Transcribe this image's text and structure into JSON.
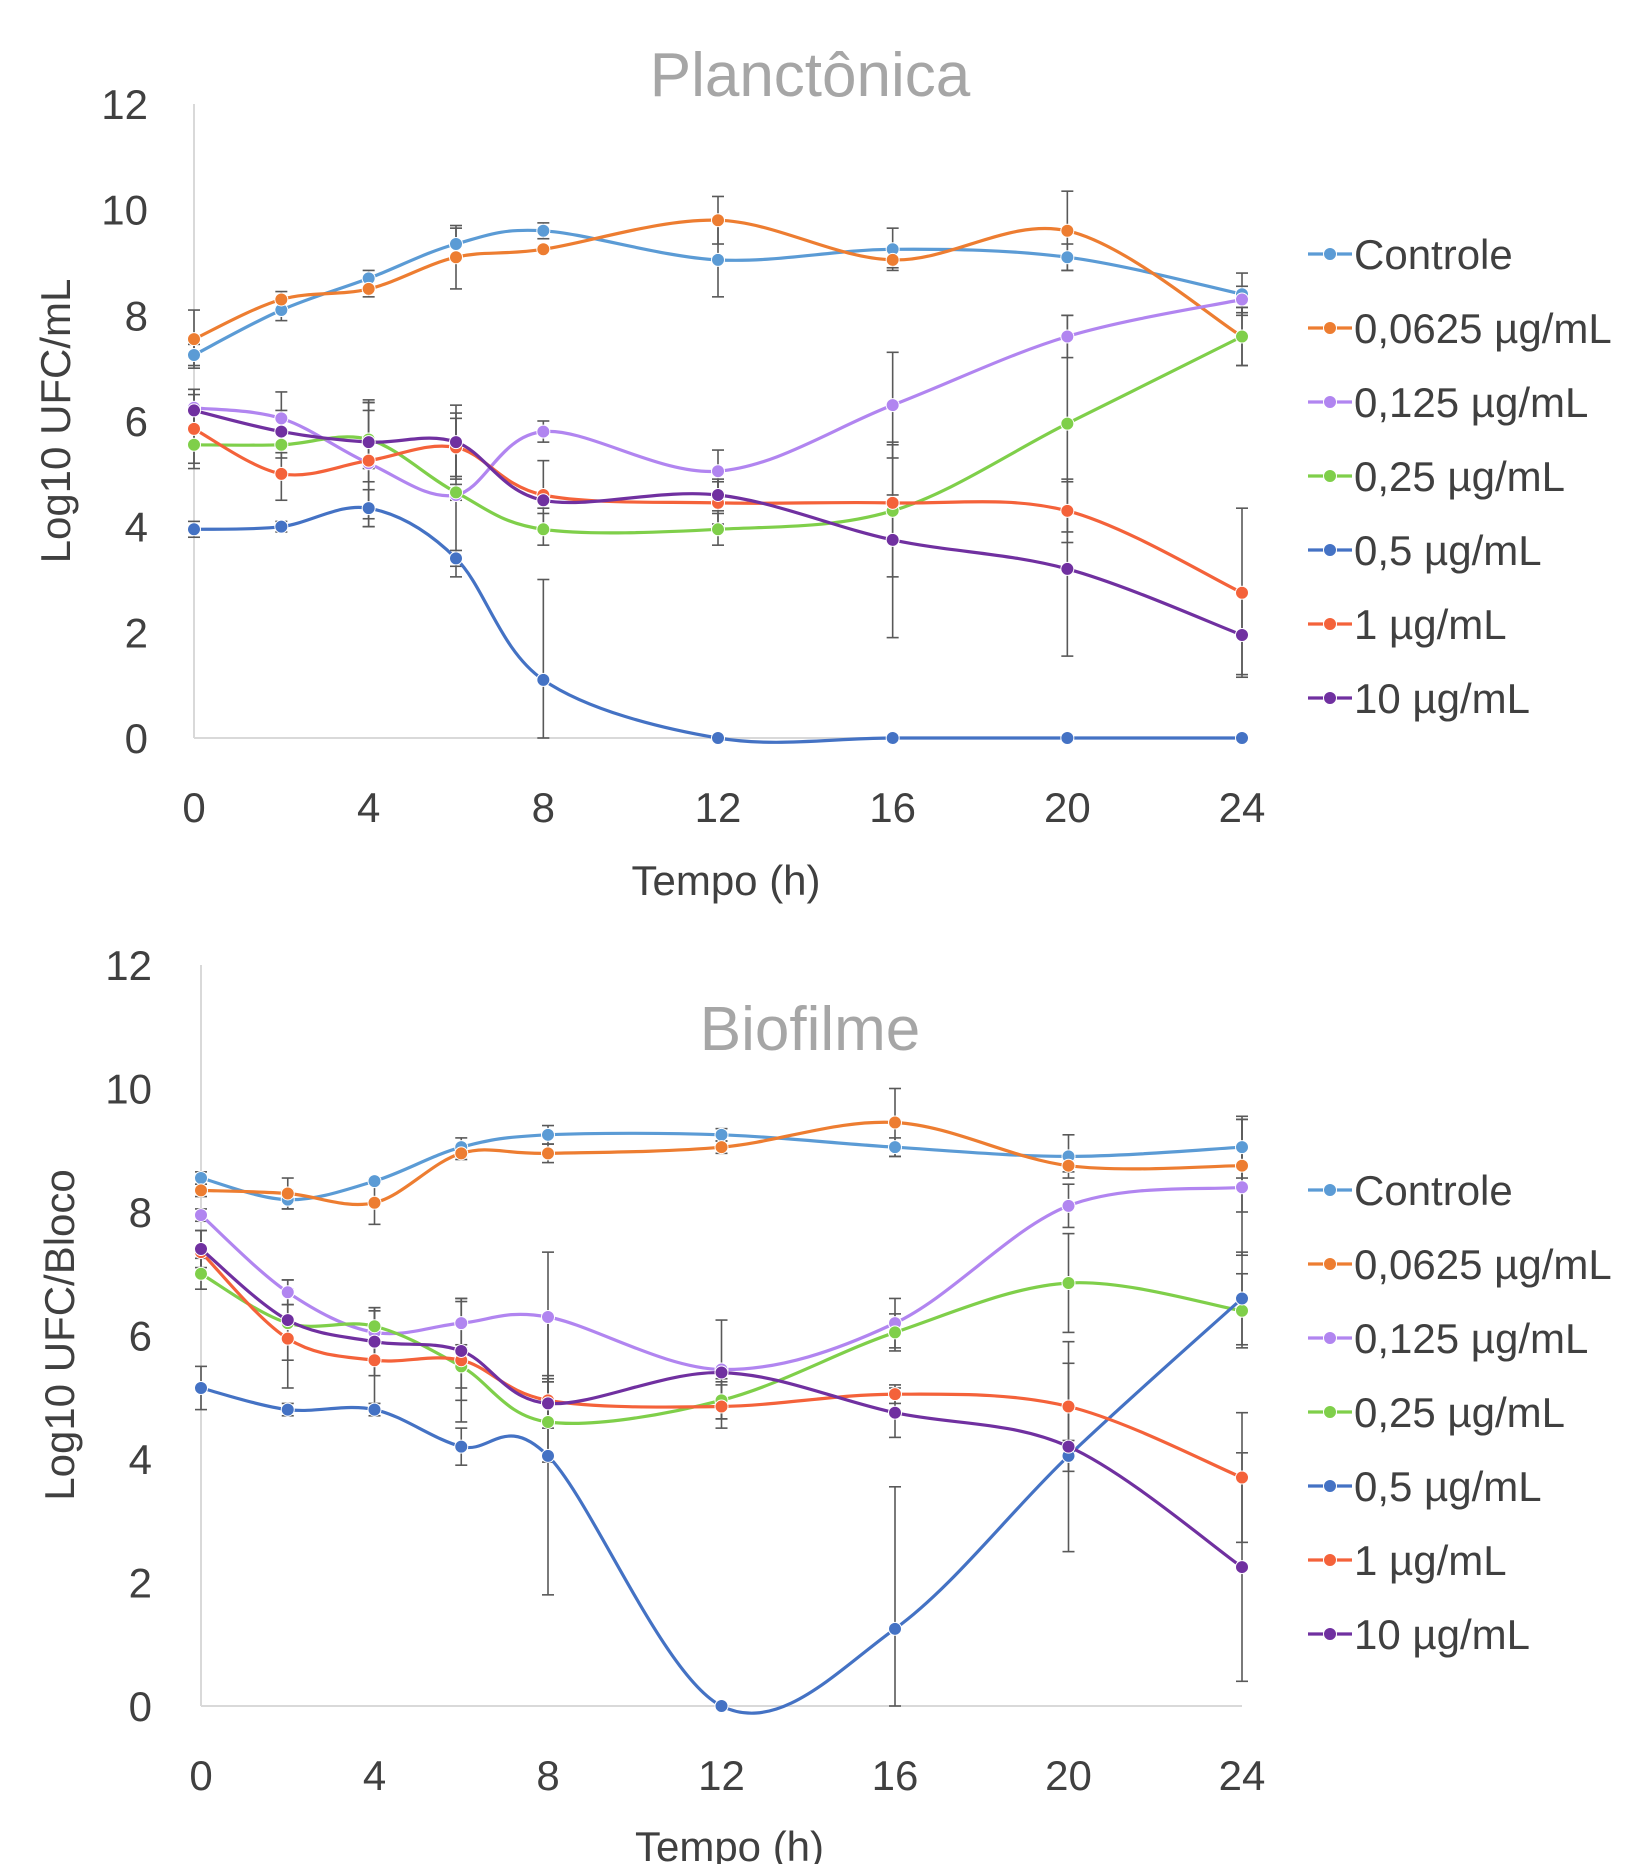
{
  "chart_data": [
    {
      "type": "line",
      "title": "Planctônica",
      "xlabel": "Tempo (h)",
      "ylabel": "Log10 UFC/mL",
      "x": [
        0,
        2,
        4,
        6,
        8,
        12,
        16,
        20,
        24
      ],
      "xticks": [
        0,
        4,
        8,
        12,
        16,
        20,
        24
      ],
      "yticks": [
        0,
        2,
        4,
        6,
        8,
        10,
        12
      ],
      "xlim": [
        0,
        24
      ],
      "ylim": [
        0,
        12
      ],
      "grid": false,
      "legend_position": "right",
      "series": [
        {
          "name": "Controle",
          "color": "#5b9bd5",
          "values": [
            7.25,
            8.1,
            8.7,
            9.35,
            9.6,
            9.05,
            9.25,
            9.1,
            8.4
          ],
          "errors": [
            0.2,
            0.2,
            0.15,
            0.3,
            0.15,
            0.7,
            0.4,
            0.25,
            0.4
          ]
        },
        {
          "name": "0,0625 µg/mL",
          "color": "#ed7d31",
          "values": [
            7.55,
            8.3,
            8.5,
            9.1,
            9.25,
            9.8,
            9.05,
            9.6,
            7.6
          ],
          "errors": [
            0.55,
            0.15,
            0.15,
            0.6,
            0.05,
            0.45,
            0.15,
            0.75,
            0.55
          ]
        },
        {
          "name": "0,125 µg/mL",
          "color": "#b185f0",
          "values": [
            6.25,
            6.05,
            5.2,
            4.6,
            5.8,
            5.05,
            6.3,
            7.6,
            8.3
          ],
          "errors": [
            0.35,
            0.5,
            1.2,
            1.55,
            0.2,
            0.4,
            1.0,
            0.4,
            0.25
          ]
        },
        {
          "name": "0,25 µg/mL",
          "color": "#7fcf4a",
          "values": [
            5.55,
            5.55,
            5.65,
            4.65,
            3.95,
            3.95,
            4.3,
            5.95,
            7.6
          ],
          "errors": [
            0.35,
            0.25,
            0.55,
            0.15,
            0.3,
            0.3,
            1.25,
            2.05,
            0.55
          ]
        },
        {
          "name": "0,5 µg/mL",
          "color": "#4472c4",
          "values": [
            3.95,
            4.0,
            4.35,
            3.4,
            1.1,
            0.0,
            0.0,
            0.0,
            0.0
          ],
          "errors": [
            0.15,
            0.1,
            0.35,
            0.15,
            1.9,
            0.0,
            0.0,
            0.0,
            0.0
          ]
        },
        {
          "name": "1 µg/mL",
          "color": "#f4623a",
          "values": [
            5.85,
            5.0,
            5.25,
            5.5,
            4.6,
            4.45,
            4.45,
            4.3,
            2.75
          ],
          "errors": [
            0.75,
            0.5,
            1.1,
            0.55,
            0.65,
            0.4,
            0.15,
            0.6,
            1.6
          ]
        },
        {
          "name": "10 µg/mL",
          "color": "#7030a0",
          "values": [
            6.2,
            5.8,
            5.6,
            5.6,
            4.5,
            4.6,
            3.75,
            3.2,
            1.95
          ],
          "errors": [
            0.3,
            0.4,
            0.75,
            0.7,
            0.15,
            0.3,
            1.85,
            1.65,
            0.75
          ]
        }
      ]
    },
    {
      "type": "line",
      "title": "Biofilme",
      "xlabel": "Tempo (h)",
      "ylabel": "Log10 UFC/Bloco",
      "x": [
        0,
        2,
        4,
        6,
        8,
        12,
        16,
        20,
        24
      ],
      "xticks": [
        0,
        4,
        8,
        12,
        16,
        20,
        24
      ],
      "yticks": [
        0,
        2,
        4,
        6,
        8,
        10,
        12
      ],
      "xlim": [
        0,
        24
      ],
      "ylim": [
        0,
        12
      ],
      "grid": false,
      "legend_position": "right",
      "series": [
        {
          "name": "Controle",
          "color": "#5b9bd5",
          "values": [
            8.55,
            8.2,
            8.5,
            9.05,
            9.25,
            9.25,
            9.05,
            8.9,
            9.05
          ],
          "errors": [
            0.1,
            0.15,
            0.05,
            0.15,
            0.15,
            0.1,
            0.15,
            0.35,
            0.5
          ]
        },
        {
          "name": "0,0625 µg/mL",
          "color": "#ed7d31",
          "values": [
            8.35,
            8.3,
            8.15,
            8.95,
            8.95,
            9.05,
            9.45,
            8.75,
            8.75
          ],
          "errors": [
            0.1,
            0.25,
            0.35,
            0.1,
            0.15,
            0.1,
            0.55,
            0.1,
            0.75
          ]
        },
        {
          "name": "0,125 µg/mL",
          "color": "#b185f0",
          "values": [
            7.95,
            6.7,
            6.05,
            6.2,
            6.3,
            5.45,
            6.2,
            8.1,
            8.4
          ],
          "errors": [
            0.1,
            0.2,
            0.4,
            0.4,
            1.05,
            0.8,
            0.4,
            0.35,
            1.1
          ]
        },
        {
          "name": "0,25 µg/mL",
          "color": "#7fcf4a",
          "values": [
            7.0,
            6.2,
            6.15,
            5.5,
            4.6,
            4.95,
            6.05,
            6.85,
            6.4
          ],
          "errors": [
            0.25,
            0.3,
            0.25,
            0.35,
            0.65,
            0.3,
            0.3,
            0.8,
            0.6
          ]
        },
        {
          "name": "0,5 µg/mL",
          "color": "#4472c4",
          "values": [
            5.15,
            4.8,
            4.8,
            4.2,
            4.05,
            0.0,
            1.25,
            4.05,
            6.6
          ],
          "errors": [
            0.35,
            0.1,
            0.1,
            0.3,
            2.25,
            0.0,
            2.3,
            0.25,
            0.75
          ]
        },
        {
          "name": "1 µg/mL",
          "color": "#f4623a",
          "values": [
            7.35,
            5.95,
            5.6,
            5.6,
            4.95,
            4.85,
            5.05,
            4.85,
            3.7
          ],
          "errors": [
            0.35,
            0.8,
            0.8,
            1.0,
            0.4,
            0.35,
            0.15,
            0.7,
            1.05
          ]
        },
        {
          "name": "10 µg/mL",
          "color": "#7030a0",
          "values": [
            7.4,
            6.25,
            5.9,
            5.75,
            4.9,
            5.4,
            4.75,
            4.2,
            2.25
          ],
          "errors": [
            0.3,
            0.65,
            0.55,
            0.8,
            0.4,
            0.1,
            0.4,
            1.7,
            1.85
          ]
        }
      ]
    }
  ]
}
